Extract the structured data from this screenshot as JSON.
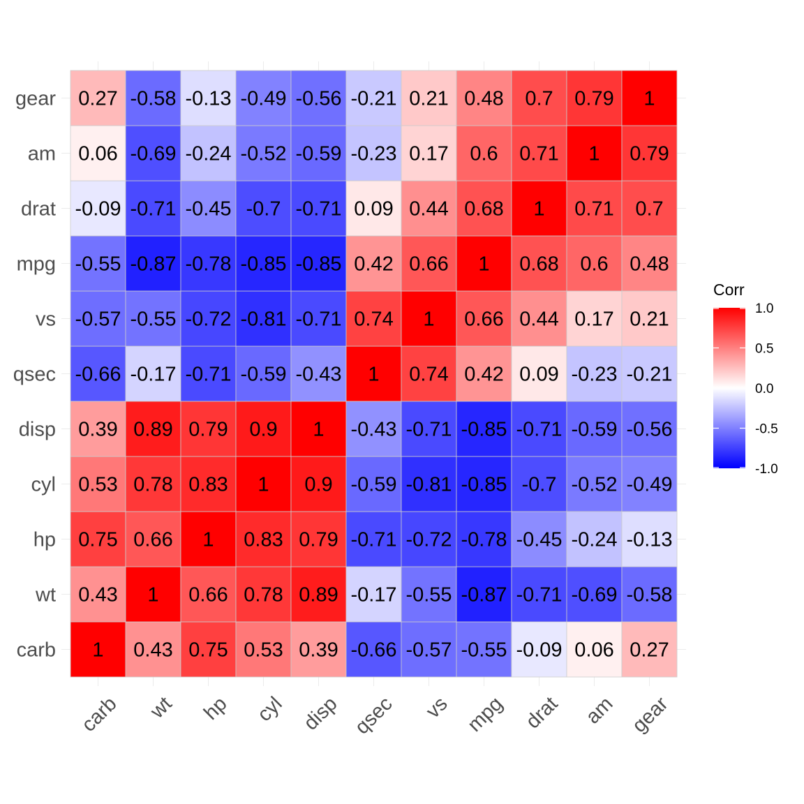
{
  "chart_data": {
    "type": "heatmap",
    "title": "",
    "xlabel": "",
    "ylabel": "",
    "x_categories": [
      "carb",
      "wt",
      "hp",
      "cyl",
      "disp",
      "qsec",
      "vs",
      "mpg",
      "drat",
      "am",
      "gear"
    ],
    "y_categories_bottom_to_top": [
      "carb",
      "wt",
      "hp",
      "cyl",
      "disp",
      "qsec",
      "vs",
      "mpg",
      "drat",
      "am",
      "gear"
    ],
    "values_rows_bottom_to_top": [
      [
        1,
        0.43,
        0.75,
        0.53,
        0.39,
        -0.66,
        -0.57,
        -0.55,
        -0.09,
        0.06,
        0.27
      ],
      [
        0.43,
        1,
        0.66,
        0.78,
        0.89,
        -0.17,
        -0.55,
        -0.87,
        -0.71,
        -0.69,
        -0.58
      ],
      [
        0.75,
        0.66,
        1,
        0.83,
        0.79,
        -0.71,
        -0.72,
        -0.78,
        -0.45,
        -0.24,
        -0.13
      ],
      [
        0.53,
        0.78,
        0.83,
        1,
        0.9,
        -0.59,
        -0.81,
        -0.85,
        -0.7,
        -0.52,
        -0.49
      ],
      [
        0.39,
        0.89,
        0.79,
        0.9,
        1,
        -0.43,
        -0.71,
        -0.85,
        -0.71,
        -0.59,
        -0.56
      ],
      [
        -0.66,
        -0.17,
        -0.71,
        -0.59,
        -0.43,
        1,
        0.74,
        0.42,
        0.09,
        -0.23,
        -0.21
      ],
      [
        -0.57,
        -0.55,
        -0.72,
        -0.81,
        -0.71,
        0.74,
        1,
        0.66,
        0.44,
        0.17,
        0.21
      ],
      [
        -0.55,
        -0.87,
        -0.78,
        -0.85,
        -0.85,
        0.42,
        0.66,
        1,
        0.68,
        0.6,
        0.48
      ],
      [
        -0.09,
        -0.71,
        -0.45,
        -0.7,
        -0.71,
        0.09,
        0.44,
        0.68,
        1,
        0.71,
        0.7
      ],
      [
        0.06,
        -0.69,
        -0.24,
        -0.52,
        -0.59,
        -0.23,
        0.17,
        0.6,
        0.71,
        1,
        0.79
      ],
      [
        0.27,
        -0.58,
        -0.13,
        -0.49,
        -0.56,
        -0.21,
        0.21,
        0.48,
        0.7,
        0.79,
        1
      ]
    ],
    "color_scale": {
      "low": "#0000ff",
      "mid": "#ffffff",
      "high": "#ff0000",
      "limits": [
        -1,
        1
      ]
    },
    "legend": {
      "title": "Corr",
      "position": "right",
      "breaks": [
        1.0,
        0.5,
        0.0,
        -0.5,
        -1.0
      ],
      "break_labels": [
        "1.0",
        "0.5",
        "0.0",
        "-0.5",
        "-1.0"
      ]
    },
    "grid": true,
    "x_tick_rotation_deg": 45
  }
}
